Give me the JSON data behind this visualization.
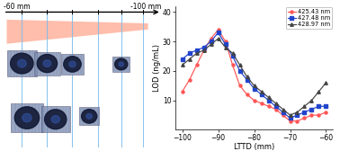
{
  "lttd": [
    -100,
    -98,
    -96,
    -94,
    -92,
    -90,
    -88,
    -86,
    -84,
    -82,
    -80,
    -78,
    -76,
    -74,
    -72,
    -70,
    -68,
    -66,
    -64,
    -62,
    -60
  ],
  "lod_425": [
    13,
    17,
    22,
    27,
    31,
    34,
    30,
    22,
    15,
    12,
    10,
    9,
    8,
    7,
    5,
    3,
    3,
    4,
    5,
    5,
    6
  ],
  "lod_427": [
    24,
    26,
    27,
    28,
    30,
    33,
    29,
    25,
    20,
    17,
    14,
    12,
    10,
    8,
    6,
    4,
    5,
    6,
    7,
    8,
    8
  ],
  "lod_428": [
    22,
    24,
    26,
    27,
    29,
    31,
    28,
    26,
    22,
    18,
    15,
    13,
    11,
    9,
    7,
    5,
    6,
    8,
    10,
    13,
    16
  ],
  "color_425": "#FF5555",
  "color_427": "#2244CC",
  "color_428": "#444444",
  "label_425": "425.43 nm",
  "label_427": "427.48 nm",
  "label_428": "428.97 nm",
  "xlabel": "LTTD (mm)",
  "ylabel": "LOD (ng/mL)",
  "xlim": [
    -102,
    -58
  ],
  "ylim": [
    0,
    42
  ],
  "yticks": [
    10,
    20,
    30,
    40
  ],
  "xticks": [
    -100,
    -90,
    -80,
    -70,
    -60
  ],
  "arrow_label_left": "-60 mm",
  "arrow_label_right": "-100 mm",
  "beam_color": "#FF8866",
  "line_color": "#77BBEE",
  "spot_bg": "#8899BB",
  "spot_dark": "#111833"
}
